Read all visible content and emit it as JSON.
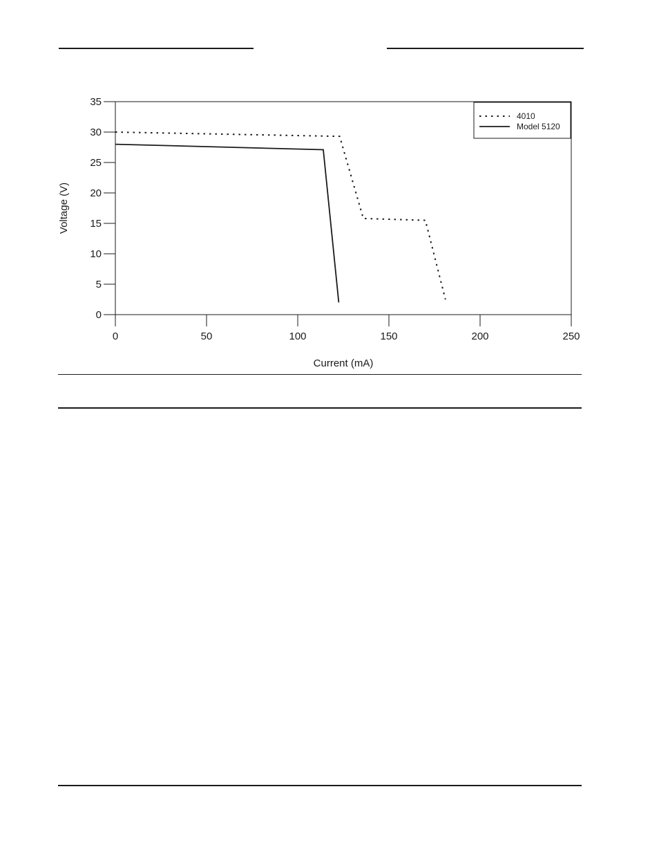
{
  "chart_data": {
    "type": "line",
    "title": "",
    "xlabel": "Current (mA)",
    "ylabel": "Voltage  (V)",
    "xlim": [
      0,
      250
    ],
    "ylim": [
      0,
      35
    ],
    "x_ticks": [
      0,
      50,
      100,
      150,
      200,
      250
    ],
    "y_ticks": [
      0,
      5,
      10,
      15,
      20,
      25,
      30,
      35
    ],
    "x_tick_labels": [
      "0",
      "50",
      "100",
      "150",
      "200",
      "250"
    ],
    "y_tick_labels": [
      "0",
      "5",
      "10",
      "15",
      "20",
      "25",
      "30",
      "35"
    ],
    "grid": false,
    "legend_position": "top-right",
    "series": [
      {
        "name": "4010",
        "style": "dotted",
        "color": "#1a1a1a",
        "x": [
          0,
          123,
          136,
          170,
          181
        ],
        "y": [
          30.0,
          29.3,
          15.8,
          15.5,
          2.5
        ]
      },
      {
        "name": "Model 5120",
        "style": "solid",
        "color": "#1a1a1a",
        "x": [
          0,
          114,
          122.5
        ],
        "y": [
          28.0,
          27.1,
          2.0
        ]
      }
    ]
  }
}
